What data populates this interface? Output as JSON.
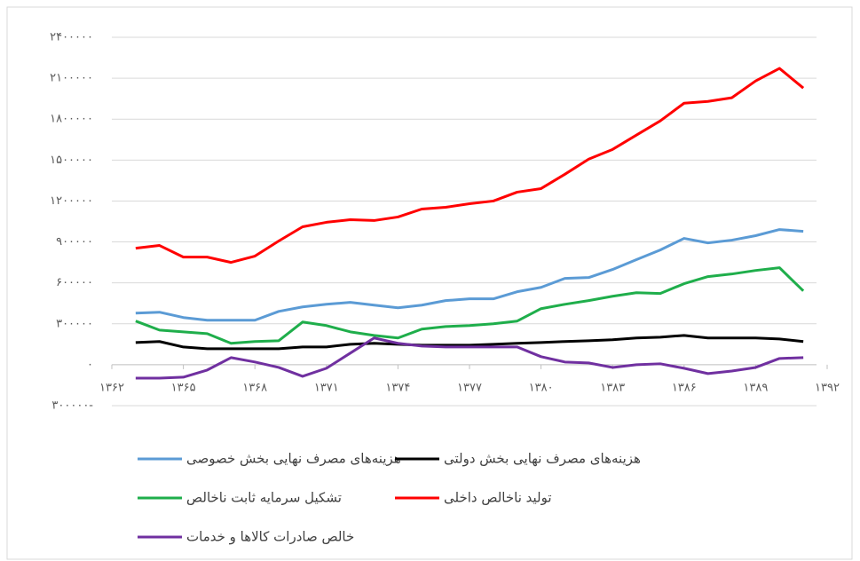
{
  "chart_data": {
    "type": "line",
    "x": [
      1363,
      1364,
      1365,
      1366,
      1367,
      1368,
      1369,
      1370,
      1371,
      1372,
      1373,
      1374,
      1375,
      1376,
      1377,
      1378,
      1379,
      1380,
      1381,
      1382,
      1383,
      1384,
      1385,
      1386,
      1387,
      1388,
      1389,
      1390,
      1391
    ],
    "series": [
      {
        "name": "هزینه‌های مصرف نهایی بخش خصوصی",
        "color": "#5b9bd5",
        "values": [
          378000,
          385000,
          346000,
          326000,
          326000,
          326000,
          391000,
          424000,
          443000,
          457000,
          437000,
          417000,
          437000,
          470000,
          483000,
          483000,
          535000,
          567000,
          633000,
          639000,
          698000,
          770000,
          841000,
          926000,
          893000,
          913000,
          946000,
          991000,
          978000
        ]
      },
      {
        "name": "هزینه‌های مصرف نهایی بخش دولتی",
        "color": "#000000",
        "values": [
          163000,
          170000,
          130000,
          117000,
          117000,
          117000,
          117000,
          130000,
          130000,
          150000,
          157000,
          150000,
          143000,
          143000,
          143000,
          150000,
          157000,
          163000,
          170000,
          176000,
          183000,
          196000,
          202000,
          215000,
          196000,
          196000,
          196000,
          189000,
          170000
        ]
      },
      {
        "name": "تشکیل سرمایه ثابت ناخالص",
        "color": "#1fae4b",
        "values": [
          320000,
          254000,
          241000,
          228000,
          157000,
          170000,
          176000,
          313000,
          287000,
          241000,
          215000,
          196000,
          261000,
          280000,
          287000,
          300000,
          320000,
          411000,
          443000,
          470000,
          502000,
          528000,
          522000,
          594000,
          646000,
          665000,
          691000,
          711000,
          541000
        ]
      },
      {
        "name": "تولید ناخالص داخلی",
        "color": "#ff0000",
        "values": [
          854000,
          874000,
          789000,
          789000,
          750000,
          796000,
          907000,
          1011000,
          1044000,
          1063000,
          1057000,
          1083000,
          1141000,
          1154000,
          1180000,
          1200000,
          1265000,
          1291000,
          1396000,
          1507000,
          1578000,
          1683000,
          1787000,
          1917000,
          1930000,
          1957000,
          2080000,
          2172000,
          2028000
        ]
      },
      {
        "name": "خالص صادرات کالاها و خدمات",
        "color": "#7030a0",
        "values": [
          -98000,
          -98000,
          -91000,
          -39000,
          52000,
          20000,
          -20000,
          -85000,
          -26000,
          85000,
          196000,
          157000,
          137000,
          130000,
          130000,
          130000,
          130000,
          59000,
          20000,
          13000,
          -20000,
          0,
          7000,
          -26000,
          -65000,
          -46000,
          -20000,
          46000,
          52000
        ]
      }
    ],
    "xlim": [
      1362,
      1392
    ],
    "xticks": [
      {
        "value": 1362,
        "label": "۱۳۶۲"
      },
      {
        "value": 1365,
        "label": "۱۳۶۵"
      },
      {
        "value": 1368,
        "label": "۱۳۶۸"
      },
      {
        "value": 1371,
        "label": "۱۳۷۱"
      },
      {
        "value": 1374,
        "label": "۱۳۷۴"
      },
      {
        "value": 1377,
        "label": "۱۳۷۷"
      },
      {
        "value": 1380,
        "label": "۱۳۸۰"
      },
      {
        "value": 1383,
        "label": "۱۳۸۳"
      },
      {
        "value": 1386,
        "label": "۱۳۸۶"
      },
      {
        "value": 1389,
        "label": "۱۳۸۹"
      },
      {
        "value": 1392,
        "label": "۱۳۹۲"
      }
    ],
    "ylim": [
      -300000,
      2400000
    ],
    "yticks": [
      {
        "value": -300000,
        "label": "۳۰۰۰۰۰-"
      },
      {
        "value": 0,
        "label": "۰"
      },
      {
        "value": 300000,
        "label": "۳۰۰۰۰۰"
      },
      {
        "value": 600000,
        "label": "۶۰۰۰۰۰"
      },
      {
        "value": 900000,
        "label": "۹۰۰۰۰۰"
      },
      {
        "value": 1200000,
        "label": "۱۲۰۰۰۰۰"
      },
      {
        "value": 1500000,
        "label": "۱۵۰۰۰۰۰"
      },
      {
        "value": 1800000,
        "label": "۱۸۰۰۰۰۰"
      },
      {
        "value": 2100000,
        "label": "۲۱۰۰۰۰۰"
      },
      {
        "value": 2400000,
        "label": "۲۴۰۰۰۰۰"
      }
    ],
    "grid": true
  }
}
